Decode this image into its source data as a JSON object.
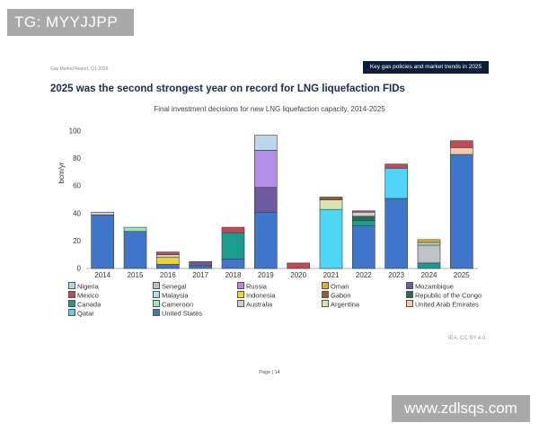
{
  "watermark_top": "TG: MYYJJPP",
  "watermark_bottom": "www.zdlsqs.com",
  "report_label": "Gas Market Report, Q1-2026",
  "banner": "Key gas policies and market trends in 2025",
  "headline": "2025 was the second strongest year on record for LNG liquefaction FIDs",
  "page": "Page | 14",
  "credit": "IEA. CC BY 4.0.",
  "chart_data": {
    "type": "bar",
    "stacked": true,
    "title": "Final investment decisions for new LNG liquefaction capacity, 2014-2025",
    "ylabel": "bcm/yr",
    "xlabel": "",
    "ylim": [
      0,
      100
    ],
    "yticks": [
      0,
      20,
      40,
      60,
      80,
      100
    ],
    "grid": false,
    "legend_position": "bottom",
    "categories": [
      "2014",
      "2015",
      "2016",
      "2017",
      "2018",
      "2019",
      "2020",
      "2021",
      "2022",
      "2023",
      "2024",
      "2025"
    ],
    "series": [
      {
        "name": "United States",
        "color": "#3f76c9",
        "values": [
          39,
          27,
          3,
          2,
          7,
          41,
          0,
          0,
          31,
          51,
          0,
          83
        ]
      },
      {
        "name": "Qatar",
        "color": "#4fd5f5",
        "values": [
          0,
          0,
          0,
          0,
          0,
          0,
          0,
          43,
          0,
          22,
          0,
          0
        ]
      },
      {
        "name": "Canada",
        "color": "#1b9c8f",
        "values": [
          0,
          0,
          0,
          0,
          19,
          0,
          0,
          0,
          4,
          0,
          4,
          0
        ]
      },
      {
        "name": "Republic of the Congo",
        "color": "#2a6b55",
        "values": [
          0,
          0,
          0,
          0,
          0,
          0,
          0,
          0,
          3,
          0,
          0,
          0
        ]
      },
      {
        "name": "Senegal",
        "color": "#bfc2c8",
        "values": [
          0,
          0,
          0,
          0,
          0,
          0,
          0,
          0,
          0,
          0,
          13,
          0
        ]
      },
      {
        "name": "Cameroon",
        "color": "#9ee6b5",
        "values": [
          0,
          3,
          0,
          0,
          0,
          0,
          0,
          0,
          0,
          0,
          2,
          0
        ]
      },
      {
        "name": "Indonesia",
        "color": "#f0d232",
        "values": [
          0,
          0,
          5,
          0,
          0,
          0,
          0,
          0,
          0,
          0,
          0,
          0
        ]
      },
      {
        "name": "Malaysia",
        "color": "#b2ddf0",
        "values": [
          0,
          0,
          0,
          0,
          0,
          0,
          0,
          0,
          0,
          0,
          0,
          0
        ]
      },
      {
        "name": "Mozambique",
        "color": "#6e5a9c",
        "values": [
          0,
          0,
          0,
          3,
          0,
          18,
          0,
          0,
          0,
          0,
          0,
          0
        ]
      },
      {
        "name": "Russia",
        "color": "#b48fe6",
        "values": [
          0,
          0,
          0,
          0,
          0,
          27,
          0,
          0,
          0,
          0,
          0,
          0
        ]
      },
      {
        "name": "Nigeria",
        "color": "#bcd6ec",
        "values": [
          0,
          0,
          0,
          0,
          0,
          11,
          0,
          0,
          0,
          0,
          0,
          0
        ]
      },
      {
        "name": "Argentina",
        "color": "#d6e4ad",
        "values": [
          0,
          0,
          0,
          0,
          0,
          0,
          0,
          7,
          0,
          0,
          0,
          0
        ]
      },
      {
        "name": "Australia",
        "color": "#cfcfcf",
        "values": [
          2,
          0,
          2,
          0,
          0,
          0,
          0,
          0,
          3,
          0,
          0,
          0
        ]
      },
      {
        "name": "United Arab Emirates",
        "color": "#f6c9a8",
        "values": [
          0,
          0,
          0,
          0,
          0,
          0,
          0,
          0,
          0,
          0,
          0,
          5
        ]
      },
      {
        "name": "Oman",
        "color": "#e8a93a",
        "values": [
          0,
          0,
          0,
          0,
          0,
          0,
          0,
          0,
          0,
          0,
          2,
          0
        ]
      },
      {
        "name": "Gabon",
        "color": "#9c5a35",
        "values": [
          0,
          0,
          0,
          0,
          0,
          0,
          0,
          2,
          0,
          0,
          0,
          0
        ]
      },
      {
        "name": "Mexico",
        "color": "#c04a55",
        "values": [
          0,
          0,
          2,
          0,
          4,
          0,
          4,
          0,
          1,
          3,
          0,
          5
        ]
      }
    ],
    "legend_order": [
      "Nigeria",
      "Senegal",
      "Russia",
      "Oman",
      "Mozambique",
      "Mexico",
      "Malaysia",
      "Indonesia",
      "Gabon",
      "Republic of the Congo",
      "Canada",
      "Cameroon",
      "Australia",
      "Argentina",
      "United Arab Emirates",
      "Qatar",
      "United States"
    ]
  }
}
